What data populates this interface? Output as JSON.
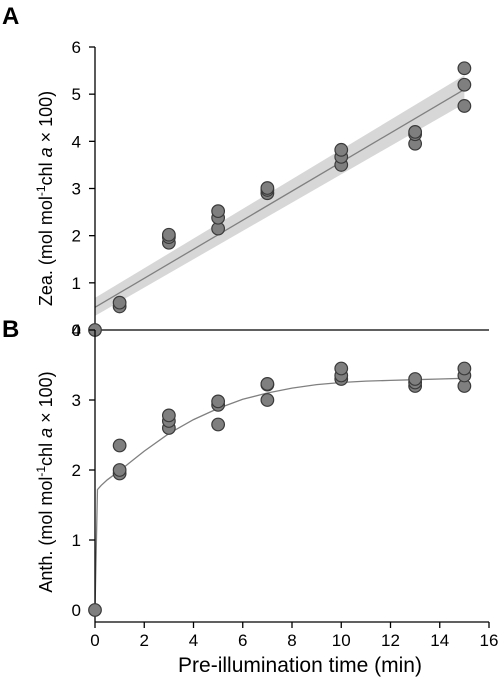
{
  "colors": {
    "point_fill": "#7f7f7f",
    "point_stroke": "#3a3a3a",
    "fit_line": "#808080",
    "ci_band": "#d3d3d3",
    "axis": "#000000"
  },
  "chart_data": [
    {
      "panel": "A",
      "type": "scatter",
      "ylabel_parts": {
        "pre": "Zea. (mol mol",
        "sup": "-1",
        "mid": "chl ",
        "italic": "a",
        "post": " × 100)"
      },
      "xlim": [
        0,
        16
      ],
      "ylim": [
        0,
        6
      ],
      "yticks": [
        0,
        1,
        2,
        3,
        4,
        5,
        6
      ],
      "points": [
        {
          "x": 0,
          "y": 0.0
        },
        {
          "x": 1,
          "y": 0.5
        },
        {
          "x": 1,
          "y": 0.58
        },
        {
          "x": 3,
          "y": 1.85
        },
        {
          "x": 3,
          "y": 1.97
        },
        {
          "x": 3,
          "y": 2.02
        },
        {
          "x": 5,
          "y": 2.15
        },
        {
          "x": 5,
          "y": 2.38
        },
        {
          "x": 5,
          "y": 2.52
        },
        {
          "x": 7,
          "y": 2.9
        },
        {
          "x": 7,
          "y": 2.97
        },
        {
          "x": 7,
          "y": 3.01
        },
        {
          "x": 10,
          "y": 3.5
        },
        {
          "x": 10,
          "y": 3.67
        },
        {
          "x": 10,
          "y": 3.82
        },
        {
          "x": 13,
          "y": 3.95
        },
        {
          "x": 13,
          "y": 4.15
        },
        {
          "x": 13,
          "y": 4.2
        },
        {
          "x": 15,
          "y": 4.75
        },
        {
          "x": 15,
          "y": 5.2
        },
        {
          "x": 15,
          "y": 5.55
        }
      ],
      "fit": {
        "kind": "linear",
        "x_range": [
          0,
          15
        ],
        "y_start": 0.48,
        "y_end": 5.1,
        "ci_start": [
          0.3,
          0.68
        ],
        "ci_end": [
          4.8,
          5.4
        ]
      }
    },
    {
      "panel": "B",
      "type": "scatter",
      "ylabel_parts": {
        "pre": "Anth. (mol mol",
        "sup": "-1",
        "mid": "chl ",
        "italic": "a",
        "post": " × 100)"
      },
      "xlabel": "Pre-illumination time (min)",
      "xlim": [
        0,
        16
      ],
      "ylim": [
        0,
        4
      ],
      "xticks": [
        0,
        2,
        4,
        6,
        8,
        10,
        12,
        14,
        16
      ],
      "yticks": [
        0,
        1,
        2,
        3,
        4
      ],
      "points": [
        {
          "x": 0,
          "y": 0.0
        },
        {
          "x": 1,
          "y": 1.95
        },
        {
          "x": 1,
          "y": 2.0
        },
        {
          "x": 1,
          "y": 2.35
        },
        {
          "x": 3,
          "y": 2.6
        },
        {
          "x": 3,
          "y": 2.7
        },
        {
          "x": 3,
          "y": 2.78
        },
        {
          "x": 5,
          "y": 2.65
        },
        {
          "x": 5,
          "y": 2.93
        },
        {
          "x": 5,
          "y": 2.98
        },
        {
          "x": 7,
          "y": 3.0
        },
        {
          "x": 7,
          "y": 3.22
        },
        {
          "x": 7,
          "y": 3.23
        },
        {
          "x": 10,
          "y": 3.3
        },
        {
          "x": 10,
          "y": 3.35
        },
        {
          "x": 10,
          "y": 3.45
        },
        {
          "x": 13,
          "y": 3.2
        },
        {
          "x": 13,
          "y": 3.25
        },
        {
          "x": 13,
          "y": 3.3
        },
        {
          "x": 15,
          "y": 3.2
        },
        {
          "x": 15,
          "y": 3.35
        },
        {
          "x": 15,
          "y": 3.45
        }
      ],
      "fit": {
        "kind": "curve",
        "curve": [
          [
            0,
            0
          ],
          [
            0.1,
            1.72
          ],
          [
            0.25,
            1.78
          ],
          [
            0.5,
            1.86
          ],
          [
            1,
            1.99
          ],
          [
            1.5,
            2.13
          ],
          [
            2,
            2.27
          ],
          [
            3,
            2.52
          ],
          [
            4,
            2.72
          ],
          [
            5,
            2.88
          ],
          [
            6,
            3.01
          ],
          [
            7,
            3.1
          ],
          [
            8,
            3.17
          ],
          [
            9,
            3.22
          ],
          [
            10,
            3.25
          ],
          [
            11,
            3.27
          ],
          [
            12,
            3.28
          ],
          [
            13,
            3.29
          ],
          [
            14,
            3.3
          ],
          [
            15,
            3.31
          ]
        ]
      }
    }
  ]
}
